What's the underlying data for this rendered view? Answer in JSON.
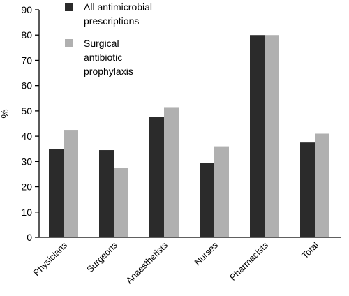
{
  "chart_data": {
    "type": "bar",
    "title": "",
    "xlabel": "",
    "ylabel": "%",
    "ylim": [
      0,
      90
    ],
    "yticks": [
      0,
      10,
      20,
      30,
      40,
      50,
      60,
      70,
      80,
      90
    ],
    "grid": false,
    "legend_position": "top-left",
    "categories": [
      "Physicians",
      "Surgeons",
      "Anaesthetists",
      "Nurses",
      "Pharmacists",
      "Total"
    ],
    "series": [
      {
        "name": "All antimicrobial prescriptions",
        "legend_lines": [
          "All antimicrobial",
          "prescriptions"
        ],
        "color": "#2b2b2b",
        "values": [
          35,
          34.5,
          47.5,
          29.5,
          80,
          37.5
        ]
      },
      {
        "name": "Surgical antibiotic prophylaxis",
        "legend_lines": [
          "Surgical",
          "antibiotic",
          "prophylaxis"
        ],
        "color": "#b0b0b0",
        "values": [
          42.5,
          27.5,
          51.5,
          36,
          80,
          41
        ]
      }
    ]
  }
}
